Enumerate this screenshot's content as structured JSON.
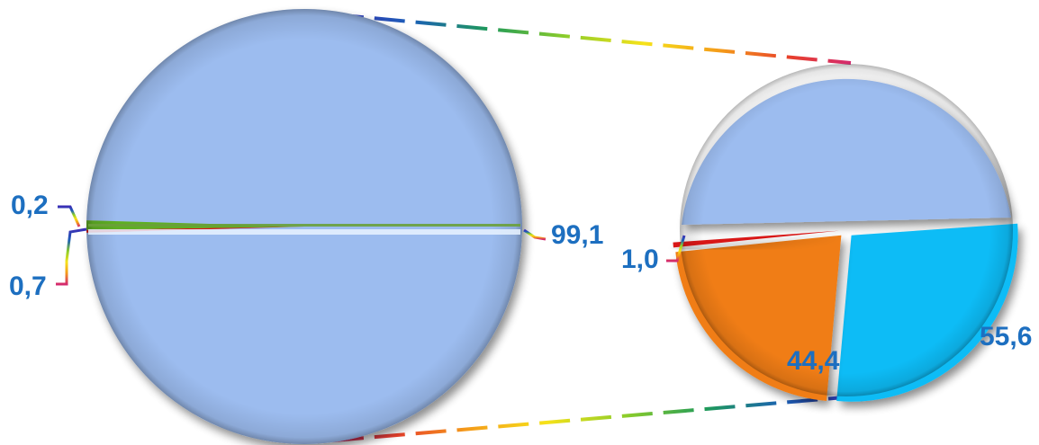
{
  "chart_data": [
    {
      "type": "pie",
      "labels": [
        "99,1",
        "0,2",
        "0,7"
      ],
      "values": [
        99.1,
        0.2,
        0.7
      ],
      "colors": [
        "#9cbcef",
        "#d81818",
        "#5fae24"
      ]
    },
    {
      "type": "pie",
      "labels": [
        "55,6",
        "44,4",
        "1,0"
      ],
      "values": [
        55.6,
        44.4,
        1.0
      ],
      "colors": [
        "#0dbcf6",
        "#f07d12",
        "#d81818"
      ]
    }
  ],
  "colors": {
    "main_pie": "#9cbcef",
    "leader_line_rainbow": [
      "#d42a6e",
      "#e8402a",
      "#f49a1a",
      "#f6e21a",
      "#8ccd2a",
      "#1f9a5a",
      "#1c5fb8",
      "#3a2fb5"
    ]
  }
}
